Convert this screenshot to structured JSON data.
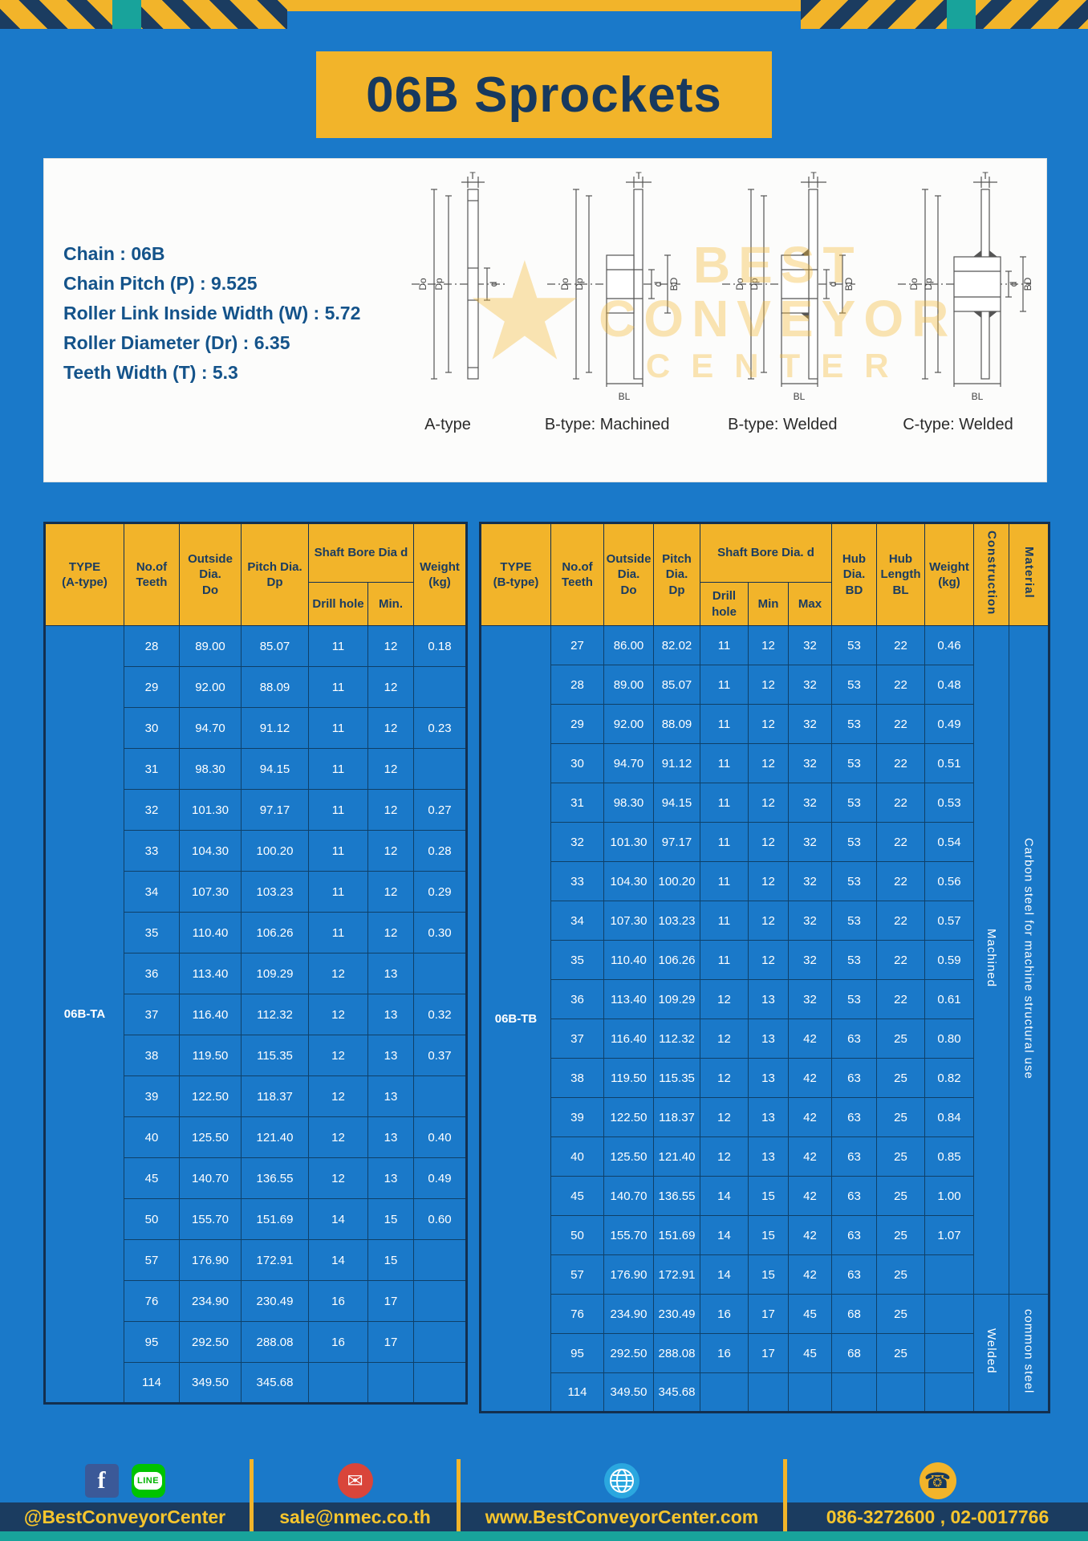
{
  "title": "06B Sprockets",
  "specs": [
    "Chain  :  06B",
    "Chain Pitch (P)  :  9.525",
    "Roller Link Inside Width (W)  :  5.72",
    "Roller Diameter (Dr)  :  6.35",
    "Teeth Width (T)  :  5.3"
  ],
  "watermark": {
    "star": "★",
    "line1": "BEST",
    "line2": "CONVEYOR",
    "line3": "CENTER"
  },
  "dims": {
    "t": "T",
    "do": "Do",
    "dp": "Dp",
    "d": "d",
    "bd": "BD",
    "bl": "BL"
  },
  "diagrams": [
    {
      "label": "A-type"
    },
    {
      "label": "B-type: Machined"
    },
    {
      "label": "B-type: Welded"
    },
    {
      "label": "C-type: Welded"
    }
  ],
  "table_a": {
    "type_label": "06B-TA",
    "headers": {
      "type": "TYPE\n(A-type)",
      "teeth": "No.of\nTeeth",
      "outside": "Outside\nDia.\nDo",
      "pitch": "Pitch Dia.\nDp",
      "shaft_bore": "Shaft Bore Dia d",
      "drill": "Drill hole",
      "min": "Min.",
      "weight": "Weight\n(kg)"
    },
    "rows": [
      [
        "28",
        "89.00",
        "85.07",
        "11",
        "12",
        "0.18"
      ],
      [
        "29",
        "92.00",
        "88.09",
        "11",
        "12",
        ""
      ],
      [
        "30",
        "94.70",
        "91.12",
        "11",
        "12",
        "0.23"
      ],
      [
        "31",
        "98.30",
        "94.15",
        "11",
        "12",
        ""
      ],
      [
        "32",
        "101.30",
        "97.17",
        "11",
        "12",
        "0.27"
      ],
      [
        "33",
        "104.30",
        "100.20",
        "11",
        "12",
        "0.28"
      ],
      [
        "34",
        "107.30",
        "103.23",
        "11",
        "12",
        "0.29"
      ],
      [
        "35",
        "110.40",
        "106.26",
        "11",
        "12",
        "0.30"
      ],
      [
        "36",
        "113.40",
        "109.29",
        "12",
        "13",
        ""
      ],
      [
        "37",
        "116.40",
        "112.32",
        "12",
        "13",
        "0.32"
      ],
      [
        "38",
        "119.50",
        "115.35",
        "12",
        "13",
        "0.37"
      ],
      [
        "39",
        "122.50",
        "118.37",
        "12",
        "13",
        ""
      ],
      [
        "40",
        "125.50",
        "121.40",
        "12",
        "13",
        "0.40"
      ],
      [
        "45",
        "140.70",
        "136.55",
        "12",
        "13",
        "0.49"
      ],
      [
        "50",
        "155.70",
        "151.69",
        "14",
        "15",
        "0.60"
      ],
      [
        "57",
        "176.90",
        "172.91",
        "14",
        "15",
        ""
      ],
      [
        "76",
        "234.90",
        "230.49",
        "16",
        "17",
        ""
      ],
      [
        "95",
        "292.50",
        "288.08",
        "16",
        "17",
        ""
      ],
      [
        "114",
        "349.50",
        "345.68",
        "",
        "",
        ""
      ]
    ]
  },
  "table_b": {
    "type_label": "06B-TB",
    "headers": {
      "type": "TYPE\n(B-type)",
      "teeth": "No.of\nTeeth",
      "outside": "Outside\nDia.\nDo",
      "pitch": "Pitch\nDia.\nDp",
      "shaft_bore": "Shaft Bore Dia.  d",
      "drill": "Drill hole",
      "min": "Min",
      "max": "Max",
      "hub_dia": "Hub\nDia.\nBD",
      "hub_len": "Hub\nLength\nBL",
      "weight": "Weight\n(kg)",
      "construction": "Construction",
      "material": "Material"
    },
    "rows": [
      [
        "27",
        "86.00",
        "82.02",
        "11",
        "12",
        "32",
        "53",
        "22",
        "0.46"
      ],
      [
        "28",
        "89.00",
        "85.07",
        "11",
        "12",
        "32",
        "53",
        "22",
        "0.48"
      ],
      [
        "29",
        "92.00",
        "88.09",
        "11",
        "12",
        "32",
        "53",
        "22",
        "0.49"
      ],
      [
        "30",
        "94.70",
        "91.12",
        "11",
        "12",
        "32",
        "53",
        "22",
        "0.51"
      ],
      [
        "31",
        "98.30",
        "94.15",
        "11",
        "12",
        "32",
        "53",
        "22",
        "0.53"
      ],
      [
        "32",
        "101.30",
        "97.17",
        "11",
        "12",
        "32",
        "53",
        "22",
        "0.54"
      ],
      [
        "33",
        "104.30",
        "100.20",
        "11",
        "12",
        "32",
        "53",
        "22",
        "0.56"
      ],
      [
        "34",
        "107.30",
        "103.23",
        "11",
        "12",
        "32",
        "53",
        "22",
        "0.57"
      ],
      [
        "35",
        "110.40",
        "106.26",
        "11",
        "12",
        "32",
        "53",
        "22",
        "0.59"
      ],
      [
        "36",
        "113.40",
        "109.29",
        "12",
        "13",
        "32",
        "53",
        "22",
        "0.61"
      ],
      [
        "37",
        "116.40",
        "112.32",
        "12",
        "13",
        "42",
        "63",
        "25",
        "0.80"
      ],
      [
        "38",
        "119.50",
        "115.35",
        "12",
        "13",
        "42",
        "63",
        "25",
        "0.82"
      ],
      [
        "39",
        "122.50",
        "118.37",
        "12",
        "13",
        "42",
        "63",
        "25",
        "0.84"
      ],
      [
        "40",
        "125.50",
        "121.40",
        "12",
        "13",
        "42",
        "63",
        "25",
        "0.85"
      ],
      [
        "45",
        "140.70",
        "136.55",
        "14",
        "15",
        "42",
        "63",
        "25",
        "1.00"
      ],
      [
        "50",
        "155.70",
        "151.69",
        "14",
        "15",
        "42",
        "63",
        "25",
        "1.07"
      ],
      [
        "57",
        "176.90",
        "172.91",
        "14",
        "15",
        "42",
        "63",
        "25",
        ""
      ],
      [
        "76",
        "234.90",
        "230.49",
        "16",
        "17",
        "45",
        "68",
        "25",
        ""
      ],
      [
        "95",
        "292.50",
        "288.08",
        "16",
        "17",
        "45",
        "68",
        "25",
        ""
      ],
      [
        "114",
        "349.50",
        "345.68",
        "",
        "",
        "",
        "",
        "",
        ""
      ]
    ],
    "vcols": [
      {
        "name": "construction-cell",
        "segments": [
          {
            "label": "Machined",
            "span": 17
          },
          {
            "label": "Welded",
            "span": 3
          }
        ]
      },
      {
        "name": "material-cell",
        "segments": [
          {
            "label": "Carbon steel for machine structural use",
            "span": 17
          },
          {
            "label": "common steel",
            "span": 3
          }
        ]
      }
    ]
  },
  "footer": {
    "facebook_f": "f",
    "line_text": "LINE",
    "icons": {
      "mail": "✉",
      "phone": "☎"
    },
    "facebook_line_label": "@BestConveyorCenter",
    "email": "sale@nmec.co.th",
    "website": "www.BestConveyorCenter.com",
    "phones": "086-3272600 , 02-0017766"
  }
}
